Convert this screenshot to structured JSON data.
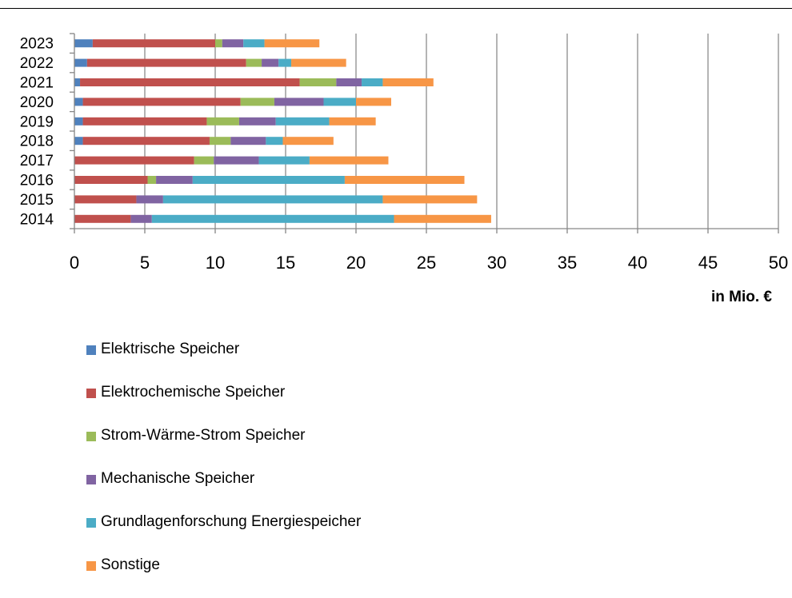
{
  "chart_data": {
    "type": "bar",
    "orientation": "horizontal",
    "stacked": true,
    "categories": [
      "2014",
      "2015",
      "2016",
      "2017",
      "2018",
      "2019",
      "2020",
      "2021",
      "2022",
      "2023"
    ],
    "series": [
      {
        "name": "Elektrische Speicher",
        "color": "#4F81BD",
        "values": [
          0,
          0,
          0,
          0,
          0.6,
          0.6,
          0.6,
          0.4,
          0.9,
          1.3
        ]
      },
      {
        "name": "Elektrochemische Speicher",
        "color": "#C0504D",
        "values": [
          4.0,
          4.4,
          5.2,
          8.5,
          9.0,
          8.8,
          11.2,
          15.6,
          11.3,
          8.7
        ]
      },
      {
        "name": "Strom-Wärme-Strom Speicher",
        "color": "#9BBB59",
        "values": [
          0,
          0,
          0.6,
          1.4,
          1.5,
          2.3,
          2.4,
          2.6,
          1.1,
          0.5
        ]
      },
      {
        "name": "Mechanische Speicher",
        "color": "#8064A2",
        "values": [
          1.5,
          1.9,
          2.6,
          3.2,
          2.5,
          2.6,
          3.5,
          1.8,
          1.2,
          1.5
        ]
      },
      {
        "name": "Grundlagenforschung Energiespeicher",
        "color": "#4BACC6",
        "values": [
          17.2,
          15.6,
          10.8,
          3.6,
          1.2,
          3.8,
          2.3,
          1.5,
          0.9,
          1.5
        ]
      },
      {
        "name": "Sonstige",
        "color": "#F79646",
        "values": [
          6.9,
          6.7,
          8.5,
          5.6,
          3.6,
          3.3,
          2.5,
          3.6,
          3.9,
          3.9
        ]
      }
    ],
    "xlim": [
      0,
      50
    ],
    "xticks": [
      "0",
      "5",
      "10",
      "15",
      "20",
      "25",
      "30",
      "35",
      "40",
      "45",
      "50"
    ],
    "xlabel": "in Mio. €",
    "ylabel": "",
    "title": "",
    "grid": "vertical",
    "legend_position": "bottom-left"
  }
}
